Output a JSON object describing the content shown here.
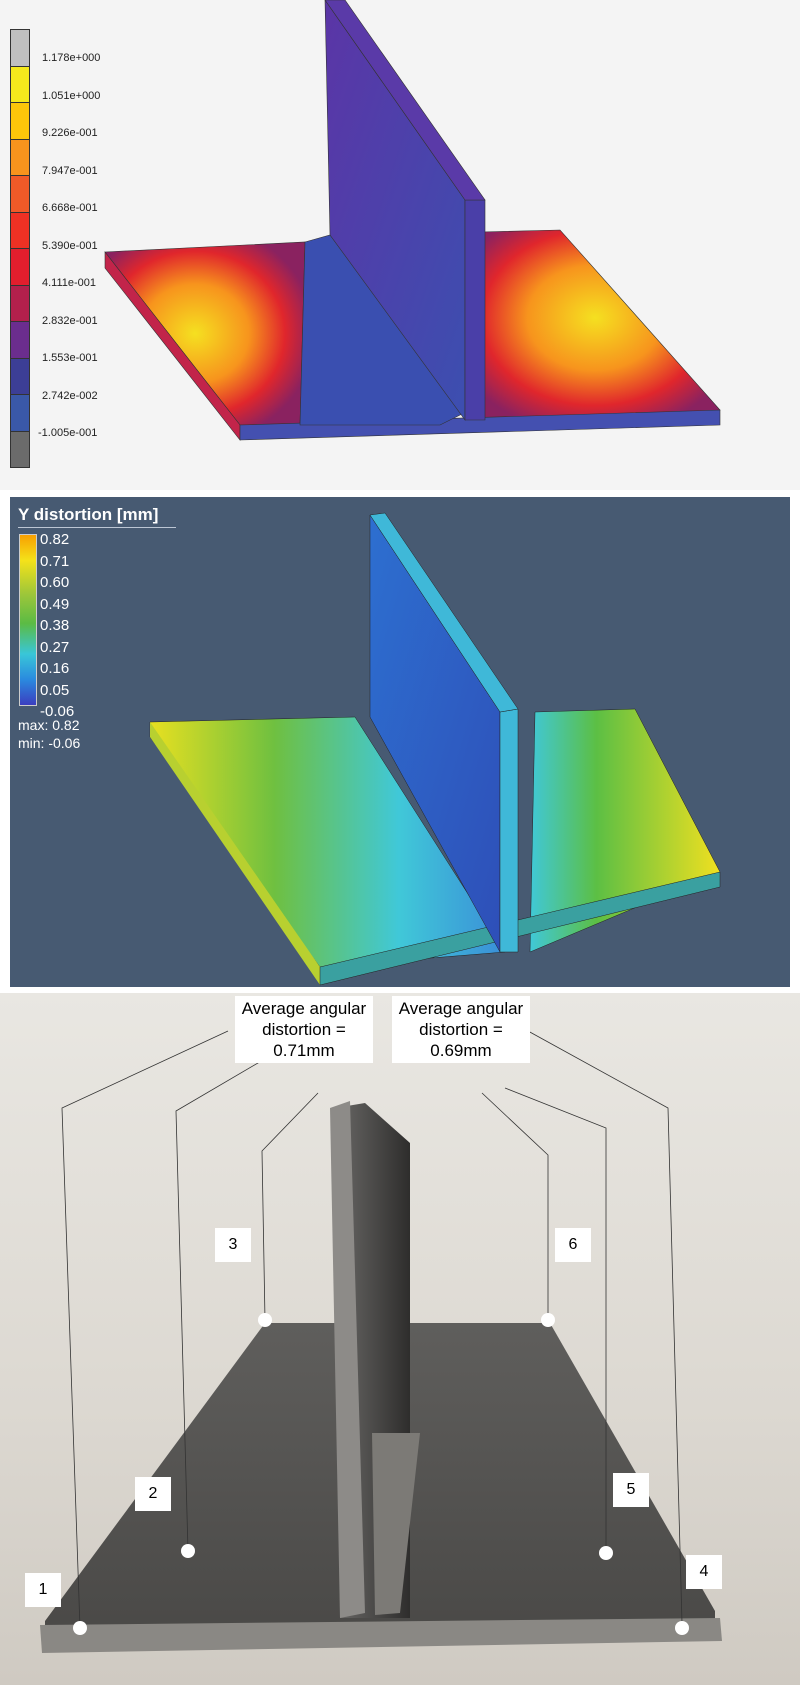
{
  "panel_top": {
    "legend_labels": [
      "1.178e+000",
      "1.051e+000",
      "9.226e-001",
      "7.947e-001",
      "6.668e-001",
      "5.390e-001",
      "4.111e-001",
      "2.832e-001",
      "1.553e-001",
      "2.742e-002",
      "-1.005e-001"
    ],
    "legend_colors": [
      "#c0c0c0",
      "#f5e91c",
      "#fdc60a",
      "#f7941d",
      "#f05a28",
      "#ee3124",
      "#e21e2d",
      "#b3204c",
      "#6b2d8e",
      "#3c3e96",
      "#3a58a8",
      "#6b6b6b"
    ]
  },
  "panel_middle": {
    "title": "Y distortion [mm]",
    "legend_labels": [
      "0.82",
      "0.71",
      "0.60",
      "0.49",
      "0.38",
      "0.27",
      "0.16",
      "0.05",
      "-0.06"
    ],
    "max_label": "max:  0.82",
    "min_label": "min:  -0.06"
  },
  "panel_bottom": {
    "left_annotation": [
      "Average angular",
      "distortion =",
      "0.71mm"
    ],
    "right_annotation": [
      "Average angular",
      "distortion =",
      "0.69mm"
    ],
    "points": [
      "1",
      "2",
      "3",
      "4",
      "5",
      "6"
    ]
  }
}
